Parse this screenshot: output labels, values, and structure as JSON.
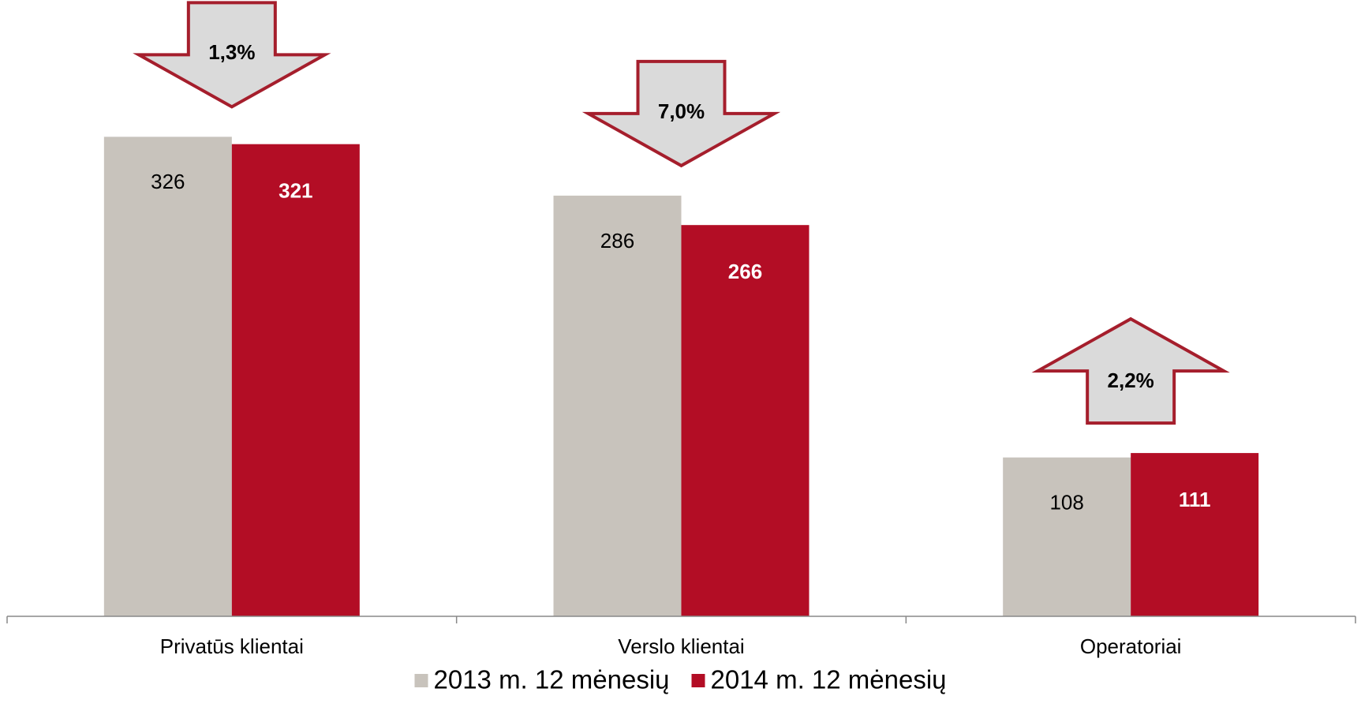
{
  "chart_data": {
    "type": "bar",
    "categories": [
      "Privatūs klientai",
      "Verslo klientai",
      "Operatoriai"
    ],
    "series": [
      {
        "name": "2013 m. 12 mėnesių",
        "color": "#c8c3bc",
        "values": [
          326,
          286,
          108
        ]
      },
      {
        "name": "2014 m. 12 mėnesių",
        "color": "#b30d25",
        "values": [
          321,
          266,
          111
        ]
      }
    ],
    "ylim": [
      0,
      419
    ],
    "legend": "bottom",
    "annotations": [
      {
        "text": "1,3%",
        "direction": "down"
      },
      {
        "text": "7,0%",
        "direction": "down"
      },
      {
        "text": "2,2%",
        "direction": "up"
      }
    ]
  }
}
